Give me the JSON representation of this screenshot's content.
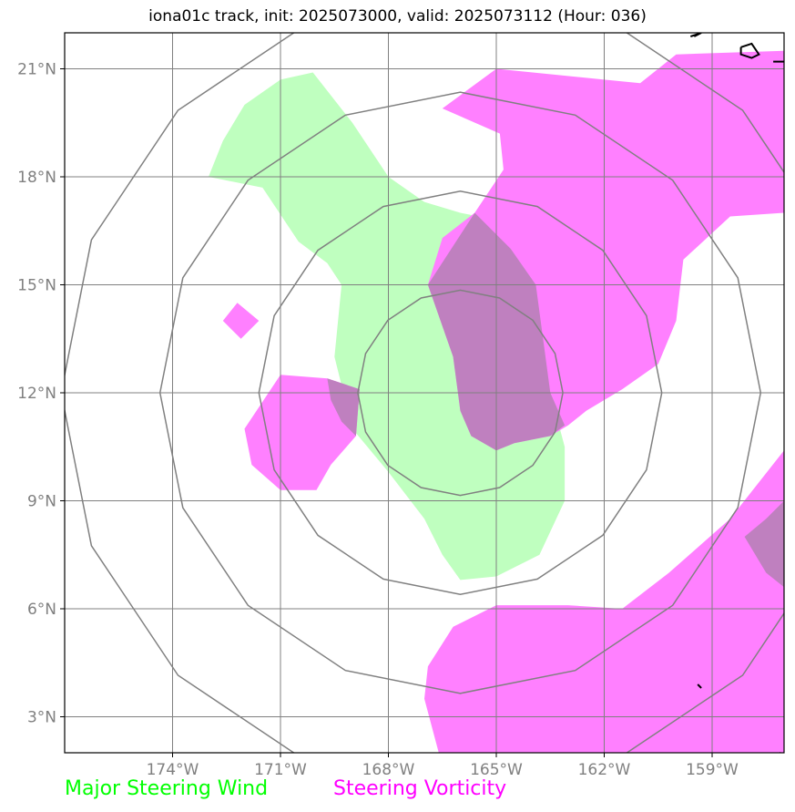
{
  "title": "iona01c track, init: 2025073000, valid: 2025073112 (Hour: 036)",
  "map": {
    "lon_range": [
      -177,
      -157
    ],
    "lat_range": [
      2,
      22
    ],
    "lon_ticks": [
      {
        "value": -174,
        "label": "174°W"
      },
      {
        "value": -171,
        "label": "171°W"
      },
      {
        "value": -168,
        "label": "168°W"
      },
      {
        "value": -165,
        "label": "165°W"
      },
      {
        "value": -162,
        "label": "162°W"
      },
      {
        "value": -159,
        "label": "159°W"
      }
    ],
    "lat_ticks": [
      {
        "value": 3,
        "label": "3°N"
      },
      {
        "value": 6,
        "label": "6°N"
      },
      {
        "value": 9,
        "label": "9°N"
      },
      {
        "value": 12,
        "label": "12°N"
      },
      {
        "value": 15,
        "label": "15°N"
      },
      {
        "value": 18,
        "label": "18°N"
      },
      {
        "value": 21,
        "label": "21°N"
      }
    ],
    "range_rings": {
      "center": [
        -166,
        12
      ],
      "radii_deg": [
        2.85,
        5.6,
        8.35,
        11.1
      ]
    },
    "colors": {
      "wind": "#bfffbf",
      "vorticity": "#ff80ff",
      "overlap": "#bf80bf",
      "grid": "#808080",
      "ring": "#808080",
      "coast": "#000000"
    },
    "wind_region": [
      [
        -172.0,
        20.0
      ],
      [
        -171.0,
        20.7
      ],
      [
        -170.1,
        20.9
      ],
      [
        -169.0,
        19.5
      ],
      [
        -168.0,
        18.0
      ],
      [
        -167.0,
        17.3
      ],
      [
        -166.0,
        17.0
      ],
      [
        -165.0,
        16.8
      ],
      [
        -164.0,
        14.5
      ],
      [
        -163.5,
        12.0
      ],
      [
        -163.1,
        10.5
      ],
      [
        -163.1,
        9.0
      ],
      [
        -163.8,
        7.5
      ],
      [
        -165.0,
        6.9
      ],
      [
        -166.0,
        6.8
      ],
      [
        -166.5,
        7.5
      ],
      [
        -167.0,
        8.5
      ],
      [
        -168.0,
        9.8
      ],
      [
        -169.0,
        11.0
      ],
      [
        -169.5,
        13.0
      ],
      [
        -169.3,
        15.0
      ],
      [
        -169.7,
        15.6
      ],
      [
        -170.5,
        16.2
      ],
      [
        -171.5,
        17.7
      ],
      [
        -173.0,
        18.0
      ],
      [
        -172.6,
        19.0
      ],
      [
        -172.0,
        20.0
      ]
    ],
    "vorticity_regions": [
      [
        [
          -166.5,
          19.9
        ],
        [
          -165.0,
          21.0
        ],
        [
          -162.0,
          20.7
        ],
        [
          -161.0,
          20.6
        ],
        [
          -160.0,
          21.4
        ],
        [
          -157.0,
          21.5
        ],
        [
          -157.0,
          17.0
        ],
        [
          -158.5,
          16.9
        ],
        [
          -159.8,
          15.7
        ],
        [
          -160.0,
          14.0
        ],
        [
          -160.5,
          12.8
        ],
        [
          -161.5,
          12.1
        ],
        [
          -162.5,
          11.5
        ],
        [
          -163.0,
          11.1
        ],
        [
          -163.5,
          10.8
        ],
        [
          -164.5,
          10.6
        ],
        [
          -165.0,
          10.4
        ],
        [
          -165.7,
          10.8
        ],
        [
          -166.0,
          11.5
        ],
        [
          -166.2,
          13.0
        ],
        [
          -166.9,
          15.0
        ],
        [
          -166.5,
          16.3
        ],
        [
          -165.6,
          17.0
        ],
        [
          -164.8,
          18.2
        ],
        [
          -164.9,
          19.2
        ],
        [
          -166.5,
          19.9
        ]
      ],
      [
        [
          -172.2,
          14.5
        ],
        [
          -171.6,
          14.0
        ],
        [
          -172.1,
          13.5
        ],
        [
          -172.6,
          14.0
        ],
        [
          -172.2,
          14.5
        ]
      ],
      [
        [
          -171.0,
          12.5
        ],
        [
          -169.7,
          12.4
        ],
        [
          -168.8,
          12.1
        ],
        [
          -168.9,
          10.8
        ],
        [
          -169.6,
          10.0
        ],
        [
          -170.0,
          9.3
        ],
        [
          -171.0,
          9.3
        ],
        [
          -171.8,
          10.0
        ],
        [
          -172.0,
          11.0
        ],
        [
          -171.0,
          12.5
        ]
      ],
      [
        [
          -165.0,
          6.1
        ],
        [
          -163.0,
          6.1
        ],
        [
          -161.5,
          6.0
        ],
        [
          -160.2,
          7.0
        ],
        [
          -158.5,
          8.5
        ],
        [
          -157.0,
          10.4
        ],
        [
          -157.0,
          2.0
        ],
        [
          -166.6,
          2.0
        ],
        [
          -167.0,
          3.5
        ],
        [
          -166.9,
          4.4
        ],
        [
          -166.2,
          5.5
        ],
        [
          -165.0,
          6.1
        ]
      ]
    ],
    "overlap_regions": [
      [
        [
          -165.6,
          17.0
        ],
        [
          -166.9,
          15.0
        ],
        [
          -166.2,
          13.0
        ],
        [
          -166.0,
          11.5
        ],
        [
          -165.7,
          10.8
        ],
        [
          -165.0,
          10.4
        ],
        [
          -164.5,
          10.6
        ],
        [
          -163.5,
          10.8
        ],
        [
          -163.1,
          11.1
        ],
        [
          -163.5,
          12.0
        ],
        [
          -163.9,
          15.0
        ],
        [
          -164.6,
          16.0
        ],
        [
          -165.6,
          17.0
        ]
      ],
      [
        [
          -169.7,
          12.4
        ],
        [
          -168.8,
          12.1
        ],
        [
          -168.9,
          10.8
        ],
        [
          -169.3,
          11.2
        ],
        [
          -169.6,
          11.8
        ],
        [
          -169.7,
          12.4
        ]
      ],
      [
        [
          -157.0,
          9.0
        ],
        [
          -157.5,
          8.5
        ],
        [
          -158.1,
          8.0
        ],
        [
          -157.5,
          7.0
        ],
        [
          -157.0,
          6.6
        ]
      ]
    ],
    "coastlines": [
      [
        [
          -159.6,
          21.9
        ],
        [
          -159.3,
          22.0
        ],
        [
          -159.5,
          21.9
        ]
      ],
      [
        [
          -158.2,
          21.6
        ],
        [
          -157.9,
          21.7
        ],
        [
          -157.7,
          21.4
        ],
        [
          -157.9,
          21.3
        ],
        [
          -158.2,
          21.4
        ],
        [
          -158.2,
          21.6
        ]
      ],
      [
        [
          -157.3,
          21.2
        ],
        [
          -156.9,
          21.2
        ],
        [
          -157.0,
          21.1
        ]
      ],
      [
        [
          -157.0,
          20.9
        ],
        [
          -156.8,
          20.8
        ]
      ],
      [
        [
          -159.4,
          3.9
        ],
        [
          -159.3,
          3.8
        ]
      ],
      [
        [
          -157.3,
          1.9
        ],
        [
          -157.1,
          2.0
        ]
      ]
    ]
  },
  "legend": {
    "wind_label": "Major Steering Wind",
    "wind_color": "#00ff00",
    "vorticity_label": "Steering Vorticity",
    "vorticity_color": "#ff00ff"
  }
}
